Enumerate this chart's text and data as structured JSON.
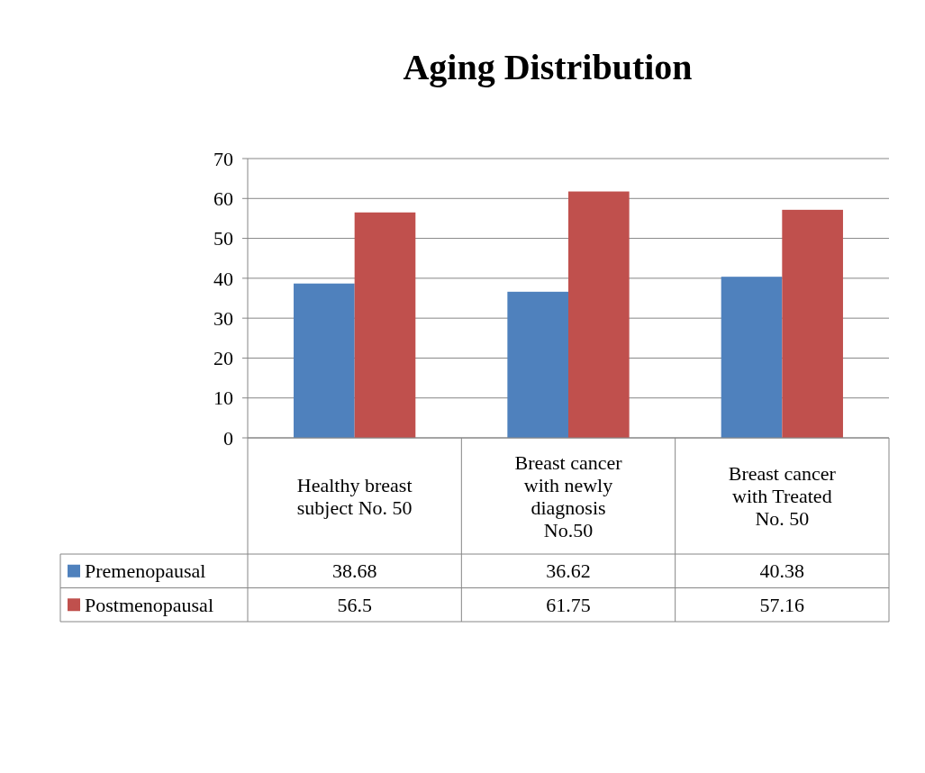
{
  "chart_data": {
    "type": "bar",
    "title": "Aging Distribution",
    "categories": [
      "Healthy breast subject No. 50",
      "Breast cancer with newly diagnosis No.50",
      "Breast cancer with Treated No. 50"
    ],
    "series": [
      {
        "name": "Premenopausal",
        "color": "#4f81bd",
        "values": [
          38.68,
          36.62,
          40.38
        ]
      },
      {
        "name": "Postmenopausal",
        "color": "#c0504d",
        "values": [
          56.5,
          61.75,
          57.16
        ]
      }
    ],
    "ylim": [
      0,
      70
    ],
    "yticks": [
      0,
      10,
      20,
      30,
      40,
      50,
      60,
      70
    ],
    "grid": "y",
    "data_labels": true,
    "legend": "bottom"
  }
}
